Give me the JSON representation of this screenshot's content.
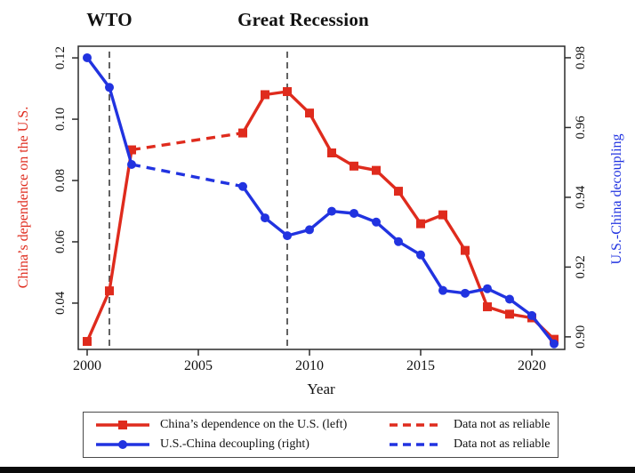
{
  "colors": {
    "red": "#df2b1d",
    "blue": "#2133e0",
    "guide_line": "#3c3c3c",
    "axis_line": "#2b2b2b",
    "text": "#111111",
    "bottom_bar": "#0b0b0b"
  },
  "annotations": [
    {
      "text": "WTO",
      "year": 2001
    },
    {
      "text": "Great Recession",
      "year": 2009
    }
  ],
  "chart_data": {
    "type": "line",
    "title": "",
    "xlabel": "Year",
    "x_range": [
      1999.6,
      2021.48
    ],
    "x_ticks": {
      "values": [
        2000,
        2005,
        2010,
        2015,
        2020
      ],
      "labels": [
        "2000",
        "2005",
        "2010",
        "2015",
        "2020"
      ]
    },
    "left_axis": {
      "title": "China’s dependence on the U.S.",
      "color": "#df2b1d",
      "range": [
        0.0249,
        0.1238
      ],
      "tick_values": [
        0.04,
        0.06,
        0.08,
        0.1,
        0.12
      ],
      "tick_labels": [
        "0.04",
        "0.06",
        "0.08",
        "0.10",
        "0.12"
      ]
    },
    "right_axis": {
      "title": "U.S.-China decoupling",
      "color": "#2133e0",
      "range": [
        0.8964,
        0.9833
      ],
      "tick_values": [
        0.9,
        0.92,
        0.94,
        0.96,
        0.98
      ],
      "tick_labels": [
        "0.90",
        "0.92",
        "0.94",
        "0.96",
        "0.98"
      ]
    },
    "guide_years": [
      2001,
      2009
    ],
    "grid": false,
    "legend_position": "bottom",
    "series": [
      {
        "name": "China’s dependence on the U.S. (left)",
        "axis": "left",
        "color": "#df2b1d",
        "marker": "square",
        "segments": [
          {
            "style": "solid",
            "years": [
              2000,
              2001,
              2002
            ],
            "values": [
              0.0275,
              0.044,
              0.09
            ]
          },
          {
            "style": "dashed",
            "years": [
              2002,
              2007
            ],
            "values": [
              0.09,
              0.0955
            ]
          },
          {
            "style": "solid",
            "years": [
              2007,
              2008,
              2009,
              2010,
              2011,
              2012,
              2013,
              2014,
              2015,
              2016,
              2017,
              2018,
              2019,
              2020,
              2021
            ],
            "values": [
              0.0955,
              0.108,
              0.109,
              0.102,
              0.089,
              0.0847,
              0.0833,
              0.0765,
              0.0659,
              0.0688,
              0.0572,
              0.0388,
              0.0364,
              0.0352,
              0.0282
            ]
          }
        ]
      },
      {
        "name": "U.S.-China decoupling (right)",
        "axis": "right",
        "color": "#2133e0",
        "marker": "circle",
        "segments": [
          {
            "style": "solid",
            "years": [
              2000,
              2001,
              2002
            ],
            "values": [
              0.98,
              0.9715,
              0.9494
            ]
          },
          {
            "style": "dashed",
            "years": [
              2002,
              2007
            ],
            "values": [
              0.9494,
              0.9431
            ]
          },
          {
            "style": "solid",
            "years": [
              2007,
              2008,
              2009,
              2010,
              2011,
              2012,
              2013,
              2014,
              2015,
              2016,
              2017,
              2018,
              2019,
              2020,
              2021
            ],
            "values": [
              0.9431,
              0.9341,
              0.929,
              0.9307,
              0.936,
              0.9354,
              0.9329,
              0.9273,
              0.9235,
              0.9133,
              0.9125,
              0.9138,
              0.9108,
              0.9061,
              0.898
            ]
          }
        ]
      }
    ]
  },
  "legend": {
    "items": [
      {
        "label": "China’s dependence on the U.S. (left)",
        "color": "#df2b1d",
        "marker": "square",
        "style": "solid"
      },
      {
        "label": "U.S.-China decoupling (right)",
        "color": "#2133e0",
        "marker": "circle",
        "style": "solid"
      },
      {
        "label": "Data not as reliable",
        "color": "#df2b1d",
        "marker": "none",
        "style": "dashed"
      },
      {
        "label": "Data not as reliable",
        "color": "#2133e0",
        "marker": "none",
        "style": "dashed"
      }
    ]
  }
}
